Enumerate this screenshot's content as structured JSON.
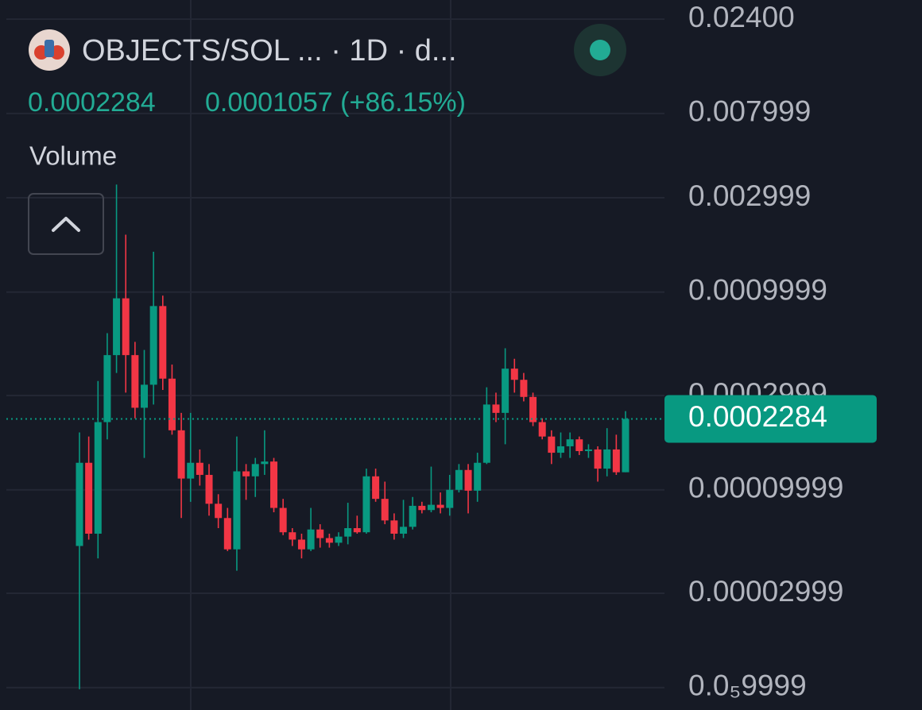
{
  "chart_data": {
    "type": "candlestick",
    "title": "OBJECTS/SOL ... · 1D · d...",
    "last_price": 0.0002284,
    "change_label": "0.0001057 (+86.15%)",
    "volume_label": "Volume",
    "log_scale": true,
    "ylim": [
      7.7e-06,
      0.03
    ],
    "yticks": [
      {
        "value": 0.024,
        "label": "0.02400"
      },
      0.007999,
      0.002999,
      0.0009999,
      0.0002999,
      9.999e-05,
      2.999e-05,
      {
        "value": 9.999e-06,
        "label": "0.0₅9999"
      }
    ],
    "up_color": "#089981",
    "down_color": "#f23645",
    "grid": true,
    "open": [
      5.2e-05,
      0.000137,
      6e-05,
      0.00022,
      0.00048,
      0.00093,
      0.00048,
      0.00026,
      0.00034,
      0.00085,
      0.000365,
      0.0002,
      0.000114,
      0.000137,
      0.000119,
      8.5e-05,
      7.2e-05,
      5e-05,
      0.000124,
      0.000117,
      0.000135,
      0.000139,
      8.1e-05,
      6.1e-05,
      5.6e-05,
      5e-05,
      6.3e-05,
      5.7e-05,
      5.4e-05,
      5.8e-05,
      6.4e-05,
      6.1e-05,
      0.000117,
      9e-05,
      7e-05,
      6e-05,
      6.5e-05,
      8.3e-05,
      7.9e-05,
      8.4e-05,
      8.1e-05,
      0.0001,
      0.000126,
      9.9e-05,
      0.000137,
      0.00027,
      0.000245,
      0.00041,
      0.00036,
      0.000295,
      0.00022,
      0.000186,
      0.000154,
      0.000166,
      0.00018,
      0.000157,
      0.00016,
      0.000128,
      0.00016,
      0.0001227
    ],
    "high": [
      0.000195,
      0.000186,
      0.000355,
      0.00062,
      0.0035,
      0.00195,
      0.00056,
      0.00051,
      0.0016,
      0.00096,
      0.00043,
      0.000245,
      0.000245,
      0.00016,
      0.000135,
      9.5e-05,
      8.1e-05,
      0.000186,
      0.000135,
      0.000145,
      0.0002,
      0.000145,
      9e-05,
      6.4e-05,
      6e-05,
      8.1e-05,
      6.7e-05,
      6e-05,
      6.1e-05,
      8.6e-05,
      7.4e-05,
      0.000128,
      0.000128,
      0.00011,
      7.6e-05,
      8.9e-05,
      9.2e-05,
      8.7e-05,
      0.000131,
      9.7e-05,
      0.000119,
      0.000135,
      0.000135,
      0.000154,
      0.00033,
      0.00031,
      0.00052,
      0.00046,
      0.00039,
      0.00031,
      0.00023,
      0.0002,
      0.000195,
      0.000195,
      0.000186,
      0.00017,
      0.000166,
      0.000205,
      0.00019,
      0.00025
    ],
    "low": [
      9.8e-06,
      5.6e-05,
      4.5e-05,
      0.00018,
      0.00039,
      0.00031,
      0.00023,
      0.000145,
      0.00027,
      0.00032,
      0.00019,
      7.2e-05,
      8.7e-05,
      0.000105,
      7.4e-05,
      6.4e-05,
      4.9e-05,
      3.9e-05,
      8.9e-05,
      9.2e-05,
      0.000119,
      7.7e-05,
      5.9e-05,
      5.2e-05,
      4.5e-05,
      4.9e-05,
      5.1e-05,
      5.1e-05,
      5.2e-05,
      5.3e-05,
      6e-05,
      6e-05,
      8.7e-05,
      6.7e-05,
      5.6e-05,
      5.7e-05,
      6.3e-05,
      7.6e-05,
      7.7e-05,
      7.6e-05,
      7.4e-05,
      9.7e-05,
      7.6e-05,
      8.7e-05,
      0.000135,
      0.00022,
      0.00017,
      0.00031,
      0.00028,
      0.00021,
      0.00018,
      0.000135,
      0.000145,
      0.000145,
      0.00015,
      0.000145,
      0.00011,
      0.000117,
      0.000119,
      0.0001227
    ],
    "close": [
      0.000137,
      6e-05,
      0.00022,
      0.00048,
      0.00093,
      0.00048,
      0.00026,
      0.00034,
      0.00085,
      0.000365,
      0.0002,
      0.000114,
      0.000137,
      0.000119,
      8.5e-05,
      7.2e-05,
      5e-05,
      0.000124,
      0.000117,
      0.000135,
      0.000139,
      8.1e-05,
      6.1e-05,
      5.6e-05,
      5e-05,
      6.3e-05,
      5.7e-05,
      5.4e-05,
      5.8e-05,
      6.4e-05,
      6.1e-05,
      0.000117,
      9e-05,
      7e-05,
      6e-05,
      6.5e-05,
      8.3e-05,
      7.9e-05,
      8.4e-05,
      8.1e-05,
      0.0001,
      0.000126,
      9.9e-05,
      0.000137,
      0.00027,
      0.000245,
      0.00041,
      0.00036,
      0.000295,
      0.00022,
      0.000186,
      0.000154,
      0.000166,
      0.00018,
      0.000157,
      0.00016,
      0.000128,
      0.00016,
      0.0001227,
      0.0002284
    ]
  }
}
